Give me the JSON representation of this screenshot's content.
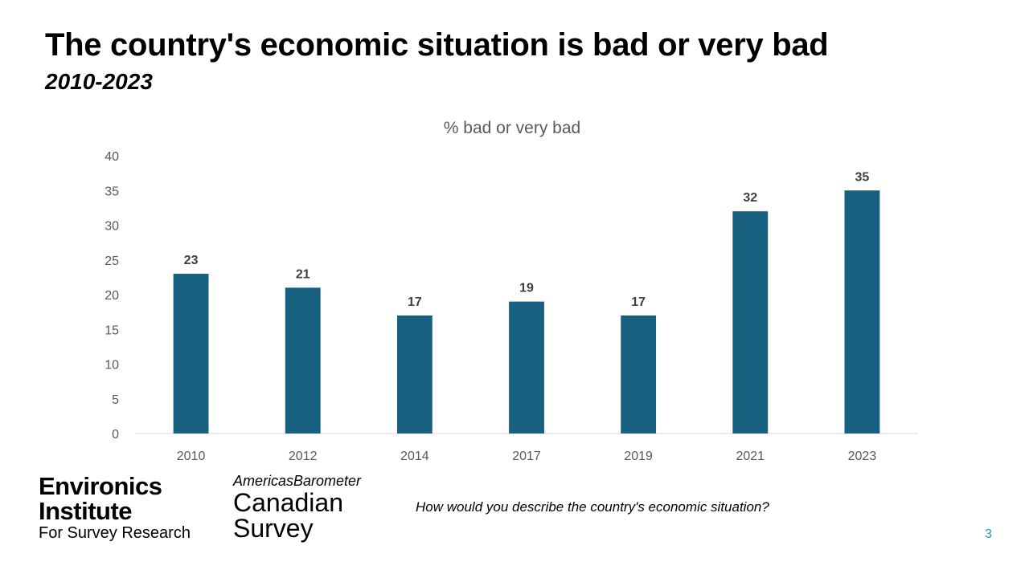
{
  "slide": {
    "title": "The country's economic situation is bad or very bad",
    "subtitle": "2010-2023",
    "question": "How would you describe the country's economic situation?",
    "page_number": "3"
  },
  "logos": {
    "environics": {
      "line1": "Environics",
      "line2": "Institute",
      "line3": "For Survey Research"
    },
    "americas_barometer": {
      "line1": "AmericasBarometer",
      "line2": "Canadian",
      "line3": "Survey"
    }
  },
  "colors": {
    "bar": "#17607f",
    "axis_text": "#595959",
    "page_number": "#2f8fbf"
  },
  "chart_data": {
    "type": "bar",
    "title": "% bad or very bad",
    "categories": [
      "2010",
      "2012",
      "2014",
      "2017",
      "2019",
      "2021",
      "2023"
    ],
    "values": [
      23,
      21,
      17,
      19,
      17,
      32,
      35
    ],
    "ylim": [
      0,
      40
    ],
    "yticks": [
      0,
      5,
      10,
      15,
      20,
      25,
      30,
      35,
      40
    ],
    "grid": false,
    "legend": "none",
    "data_labels": true
  }
}
